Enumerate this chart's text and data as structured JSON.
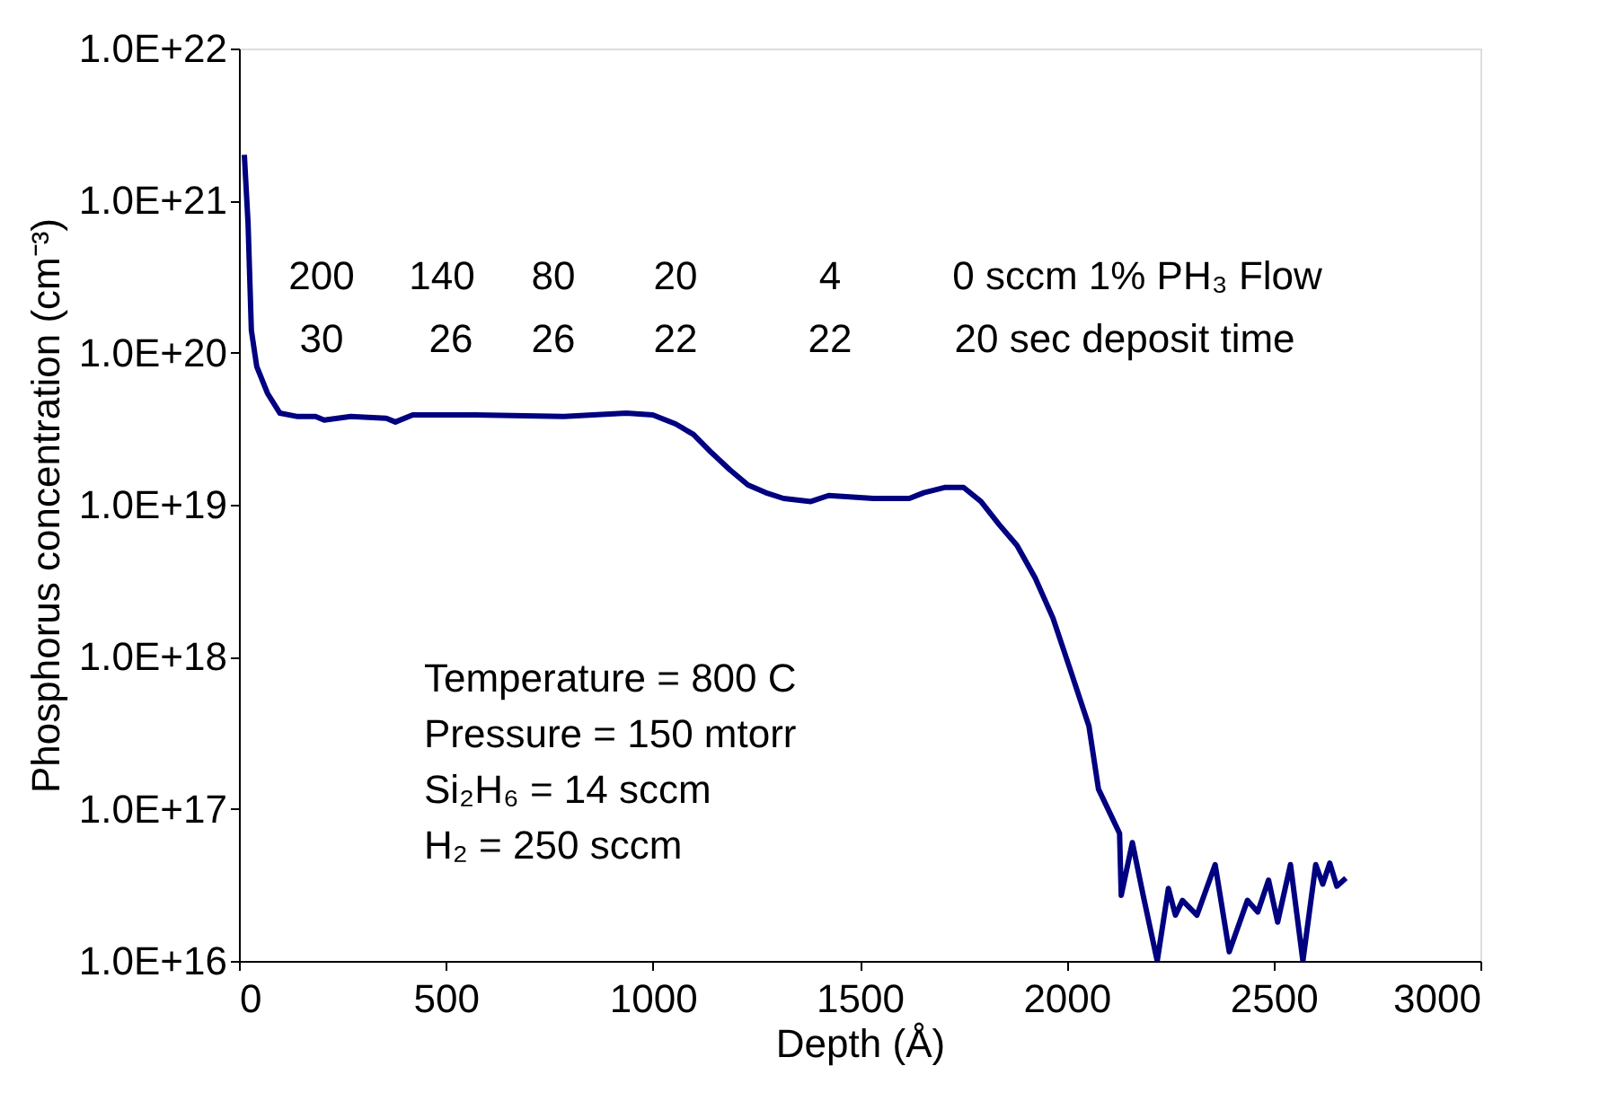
{
  "chart_data": {
    "type": "line",
    "xlabel": "Depth (Å)",
    "ylabel": "Phosphorus concentration (cm⁻³)",
    "x": [
      13,
      22,
      30,
      43,
      69,
      99,
      142,
      185,
      206,
      270,
      356,
      378,
      420,
      571,
      785,
      936,
      1000,
      1055,
      1098,
      1142,
      1186,
      1230,
      1273,
      1316,
      1382,
      1425,
      1533,
      1620,
      1655,
      1707,
      1751,
      1793,
      1837,
      1880,
      1924,
      1967,
      2011,
      2054,
      2077,
      2107,
      2128,
      2132,
      2159,
      2185,
      2219,
      2246,
      2263,
      2280,
      2315,
      2359,
      2393,
      2437,
      2462,
      2488,
      2510,
      2541,
      2571,
      2602,
      2619,
      2636,
      2653,
      2675
    ],
    "series": [
      {
        "color": "#000080",
        "values": [
          2e+21,
          7.1e+20,
          1.4e+20,
          8.1e+19,
          5.4e+19,
          4e+19,
          3.8e+19,
          3.8e+19,
          3.6e+19,
          3.8e+19,
          3.7e+19,
          3.5e+19,
          3.9e+19,
          3.9e+19,
          3.8e+19,
          4e+19,
          3.9e+19,
          3.4e+19,
          2.9e+19,
          2.2e+19,
          1.7e+19,
          1.35e+19,
          1.2e+19,
          1.1e+19,
          1.05e+19,
          1.15e+19,
          1.1e+19,
          1.1e+19,
          1.2e+19,
          1.3e+19,
          1.3e+19,
          1.05e+19,
          7.4e+18,
          5.4e+18,
          3.3e+18,
          1.8e+18,
          7.9e+17,
          3.5e+17,
          1.35e+17,
          9.1e+16,
          6.9e+16,
          2.7e+16,
          6e+16,
          2.7e+16,
          1e+16,
          3e+16,
          2e+16,
          2.5e+16,
          2e+16,
          4.3e+16,
          1.15e+16,
          2.5e+16,
          2.1e+16,
          3.4e+16,
          1.8e+16,
          4.3e+16,
          1e+16,
          4.3e+16,
          3.2e+16,
          4.4e+16,
          3.1e+16,
          3.5e+16
        ]
      }
    ],
    "xlim": [
      0,
      3000
    ],
    "xticks": [
      0,
      500,
      1000,
      1500,
      2000,
      2500,
      3000
    ],
    "ylim": [
      1e+16,
      1e+22
    ],
    "log": true,
    "yticks": [
      {
        "value": 1e+16,
        "label": "1.0E+16"
      },
      {
        "value": 1e+17,
        "label": "1.0E+17"
      },
      {
        "value": 1e+18,
        "label": "1.0E+18"
      },
      {
        "value": 1e+19,
        "label": "1.0E+19"
      },
      {
        "value": 1e+20,
        "label": "1.0E+20"
      },
      {
        "value": 1e+21,
        "label": "1.0E+21"
      },
      {
        "value": 1e+22,
        "label": "1.0E+22"
      }
    ],
    "grid": false,
    "marker": "none",
    "line_style": "solid",
    "annotations": [
      "200",
      "140",
      "80",
      "20",
      "4",
      "0 sccm 1% PH₃ Flow",
      "30",
      "26",
      "26",
      "22",
      "22",
      "20 sec deposit time",
      "Temperature = 800 C",
      "Pressure = 150 mtorr",
      "Si₂H₆ = 14 sccm",
      "H₂ = 250 sccm"
    ]
  }
}
